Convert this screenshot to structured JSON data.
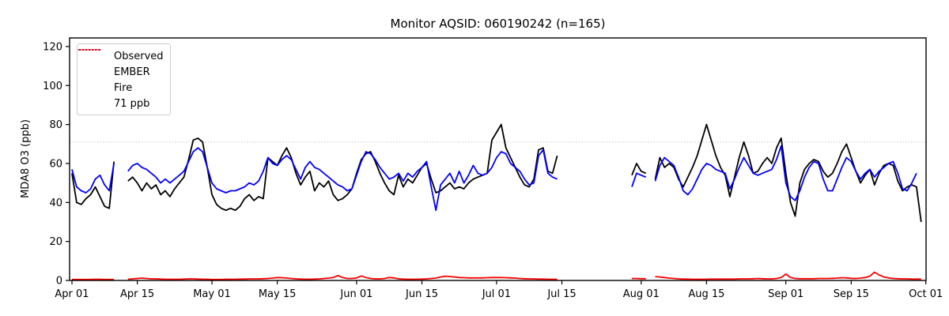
{
  "chart_data": {
    "type": "line",
    "title": "Monitor AQSID: 060190242 (n=165)",
    "ylabel": "MDA8 O3 (ppb)",
    "xlabel": "",
    "grid": false,
    "background": "#ffffff",
    "ylim": [
      0,
      124
    ],
    "yticks": [
      0,
      20,
      40,
      60,
      80,
      100,
      120
    ],
    "xticks": [
      {
        "label": "Apr 01",
        "day": 0
      },
      {
        "label": "Apr 15",
        "day": 14
      },
      {
        "label": "May 01",
        "day": 30
      },
      {
        "label": "May 15",
        "day": 44
      },
      {
        "label": "Jun 01",
        "day": 61
      },
      {
        "label": "Jun 15",
        "day": 75
      },
      {
        "label": "Jul 01",
        "day": 91
      },
      {
        "label": "Jul 15",
        "day": 105
      },
      {
        "label": "Aug 01",
        "day": 122
      },
      {
        "label": "Aug 15",
        "day": 136
      },
      {
        "label": "Sep 01",
        "day": 153
      },
      {
        "label": "Sep 15",
        "day": 167
      },
      {
        "label": "Oct 01",
        "day": 183
      }
    ],
    "threshold": {
      "label": "71 ppb",
      "value": 71,
      "color": "#d3d3d3",
      "style": "dotted"
    },
    "legend": {
      "position": "upper left",
      "entries": [
        {
          "label": "Observed",
          "color": "#000000",
          "style": "solid"
        },
        {
          "label": "EMBER",
          "color": "#0000ff",
          "style": "solid"
        },
        {
          "label": "Fire",
          "color": "#ff0000",
          "style": "solid"
        },
        {
          "label": "71 ppb",
          "color": "#d3d3d3",
          "style": "dotted"
        }
      ]
    },
    "series": [
      {
        "name": "Observed",
        "color": "#000000",
        "values": [
          55,
          40,
          39,
          42,
          44,
          48,
          43,
          38,
          37,
          61,
          null,
          null,
          51,
          53,
          50,
          46,
          50,
          47,
          49,
          44,
          46,
          43,
          47,
          50,
          53,
          62,
          72,
          73,
          71,
          58,
          44,
          39,
          37,
          36,
          37,
          36,
          38,
          42,
          44,
          41,
          43,
          42,
          63,
          61,
          59,
          64,
          68,
          63,
          55,
          49,
          53,
          56,
          46,
          50,
          48,
          51,
          44,
          41,
          42,
          44,
          47,
          55,
          62,
          65,
          66,
          61,
          55,
          50,
          46,
          44,
          54,
          48,
          52,
          50,
          54,
          58,
          60,
          52,
          45,
          46,
          48,
          50,
          47,
          48,
          47,
          50,
          52,
          53,
          54,
          55,
          72,
          76,
          80,
          68,
          63,
          58,
          53,
          49,
          48,
          52,
          67,
          68,
          56,
          55,
          64,
          null,
          null,
          null,
          null,
          null,
          null,
          null,
          null,
          null,
          null,
          null,
          null,
          null,
          null,
          null,
          54,
          60,
          56,
          55,
          null,
          52,
          63,
          58,
          60,
          58,
          52,
          48,
          53,
          58,
          64,
          72,
          80,
          72,
          64,
          58,
          54,
          43,
          53,
          63,
          71,
          64,
          55,
          56,
          60,
          63,
          60,
          68,
          73,
          55,
          40,
          33,
          50,
          57,
          60,
          62,
          61,
          56,
          53,
          55,
          60,
          66,
          70,
          63,
          56,
          50,
          54,
          57,
          49,
          55,
          59,
          60,
          59,
          51,
          46,
          48,
          49,
          48,
          30
        ]
      },
      {
        "name": "EMBER",
        "color": "#0000ff",
        "values": [
          57,
          48,
          46,
          45,
          47,
          52,
          54,
          49,
          46,
          60,
          null,
          null,
          56,
          59,
          60,
          58,
          57,
          55,
          53,
          50,
          52,
          50,
          52,
          54,
          56,
          61,
          66,
          68,
          66,
          58,
          50,
          47,
          46,
          45,
          46,
          46,
          47,
          48,
          50,
          49,
          51,
          56,
          63,
          60,
          59,
          62,
          64,
          62,
          57,
          52,
          58,
          61,
          58,
          57,
          55,
          53,
          51,
          49,
          48,
          46,
          47,
          54,
          61,
          66,
          65,
          62,
          58,
          55,
          52,
          53,
          55,
          51,
          55,
          53,
          56,
          58,
          61,
          48,
          36,
          49,
          52,
          55,
          50,
          56,
          50,
          54,
          59,
          55,
          54,
          55,
          58,
          63,
          66,
          65,
          60,
          58,
          56,
          52,
          49,
          50,
          64,
          67,
          55,
          53,
          52,
          null,
          null,
          null,
          null,
          null,
          null,
          null,
          null,
          null,
          null,
          null,
          null,
          null,
          null,
          null,
          48,
          55,
          54,
          53,
          null,
          51,
          59,
          63,
          61,
          59,
          53,
          46,
          44,
          47,
          52,
          57,
          60,
          59,
          57,
          56,
          55,
          47,
          52,
          58,
          63,
          59,
          55,
          54,
          55,
          56,
          57,
          62,
          69,
          50,
          43,
          41,
          46,
          53,
          58,
          61,
          60,
          52,
          46,
          46,
          52,
          58,
          63,
          61,
          56,
          52,
          55,
          57,
          53,
          56,
          58,
          60,
          61,
          55,
          47,
          46,
          50,
          55,
          null
        ]
      },
      {
        "name": "Fire",
        "color": "#ff0000",
        "values": [
          0.5,
          0.5,
          0.5,
          0.5,
          0.5,
          0.6,
          0.6,
          0.5,
          0.5,
          0.5,
          null,
          null,
          0.6,
          0.8,
          1.0,
          1.2,
          1.0,
          0.8,
          0.8,
          0.7,
          0.6,
          0.6,
          0.6,
          0.6,
          0.7,
          0.8,
          0.8,
          0.7,
          0.6,
          0.6,
          0.5,
          0.5,
          0.5,
          0.6,
          0.6,
          0.6,
          0.7,
          0.7,
          0.8,
          0.8,
          0.8,
          0.9,
          1.0,
          1.2,
          1.5,
          1.4,
          1.2,
          1.0,
          0.8,
          0.7,
          0.6,
          0.6,
          0.7,
          0.8,
          1.0,
          1.2,
          1.5,
          2.5,
          1.5,
          1.0,
          1.0,
          1.3,
          2.3,
          1.5,
          1.0,
          0.8,
          0.8,
          1.0,
          1.5,
          1.3,
          0.8,
          0.7,
          0.6,
          0.6,
          0.6,
          0.7,
          0.8,
          1.0,
          1.2,
          1.8,
          2.2,
          2.0,
          1.8,
          1.5,
          1.4,
          1.3,
          1.3,
          1.3,
          1.3,
          1.4,
          1.5,
          1.5,
          1.5,
          1.4,
          1.3,
          1.2,
          1.0,
          0.9,
          0.8,
          0.8,
          0.7,
          0.7,
          0.6,
          0.6,
          0.6,
          null,
          null,
          null,
          null,
          null,
          null,
          null,
          null,
          null,
          null,
          null,
          null,
          null,
          null,
          null,
          1.0,
          1.0,
          0.9,
          0.9,
          null,
          2.0,
          1.8,
          1.5,
          1.2,
          1.0,
          0.8,
          0.7,
          0.7,
          0.6,
          0.6,
          0.6,
          0.6,
          0.7,
          0.7,
          0.7,
          0.7,
          0.7,
          0.7,
          0.8,
          0.8,
          0.8,
          0.9,
          1.0,
          0.9,
          0.8,
          0.8,
          1.0,
          1.5,
          3.3,
          1.5,
          1.0,
          0.9,
          0.9,
          0.9,
          0.9,
          1.0,
          1.0,
          1.0,
          1.1,
          1.2,
          1.4,
          1.3,
          1.1,
          1.0,
          1.2,
          1.5,
          2.2,
          4.2,
          2.8,
          1.8,
          1.3,
          1.0,
          0.9,
          0.8,
          0.8,
          0.7,
          0.7,
          0.7
        ]
      }
    ]
  }
}
